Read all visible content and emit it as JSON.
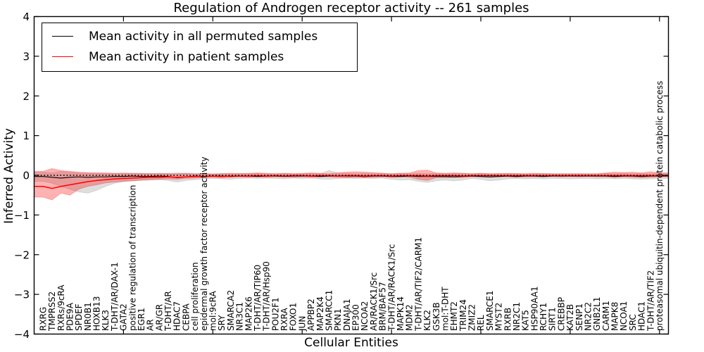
{
  "figure": {
    "title": "Regulation of Androgen receptor activity -- 261 samples"
  },
  "legend": {
    "position": "upper left",
    "items": [
      {
        "label": "Mean activity in all permuted samples",
        "color": "#000000"
      },
      {
        "label": "Mean activity in patient samples",
        "color": "#ff0000"
      }
    ]
  },
  "chart_data": {
    "type": "line",
    "title": "Regulation of Androgen receptor activity -- 261 samples",
    "xlabel": "Cellular Entities",
    "ylabel": "Inferred Activity",
    "ylim": [
      -4,
      4
    ],
    "yticks": [
      4,
      3,
      2,
      1,
      0,
      -1,
      -2,
      -3,
      -4
    ],
    "xtick_mark_interval": 10,
    "grid": false,
    "legend_position": "upper left",
    "zero_line": {
      "style": "dotted",
      "color": "#000000",
      "y": 0
    },
    "categories": [
      "RXRG",
      "TMPRSS2",
      "RXRs/9cRA",
      "PDE9A",
      "SPDEF",
      "NR0B1",
      "HOXB13",
      "KLK3",
      "T-DHT/AR/DAX-1",
      "GATA2",
      "positive regulation of transcription",
      "EGR1",
      "AR",
      "AR/GR",
      "T-DHT/AR",
      "HDAC7",
      "CEBPA",
      "cell proliferation",
      "epidermal growth factor receptor activity",
      "mol:9cRA",
      "SRY",
      "SMARCA2",
      "NR3C1",
      "MAP2K6",
      "T-DHT/AR/TIP60",
      "T-DHT/AR/Hsp90",
      "POU2F1",
      "RXRA",
      "FOXO1",
      "JUN",
      "APPBP2",
      "MAP2K4",
      "SMARCC1",
      "PKN1",
      "DNAJA1",
      "EP300",
      "NCOA2",
      "AR/RACK1/Src",
      "BRM/BAF57",
      "T-DHT/AR/RACK1/Src",
      "MAPK14",
      "MDM2",
      "T-DHT/AR/TIF2/CARM1",
      "KLK2",
      "GSK3B",
      "mol:T-DHT",
      "EHMT2",
      "TRIM24",
      "ZMIZ2",
      "REL",
      "SMARCE1",
      "MYST2",
      "RXRB",
      "NR2C1",
      "KAT5",
      "HSP90AA1",
      "RCHY1",
      "SIRT1",
      "CREBBP",
      "KAT2B",
      "SENP1",
      "NR2C2",
      "GNB2L1",
      "CARM1",
      "MAPK8",
      "NCOA1",
      "SRC",
      "HDAC1",
      "T-DHT/AR/TIF2",
      "proteasomal ubiquitin-dependent protein catabolic process"
    ],
    "series": [
      {
        "name": "Mean activity in all permuted samples",
        "color": "#000000",
        "values": [
          -0.03,
          -0.05,
          -0.07,
          -0.05,
          -0.04,
          -0.05,
          -0.04,
          -0.04,
          -0.03,
          -0.03,
          -0.02,
          -0.03,
          -0.03,
          -0.02,
          -0.03,
          -0.06,
          -0.04,
          -0.02,
          -0.03,
          -0.02,
          -0.02,
          -0.03,
          -0.02,
          -0.02,
          -0.03,
          -0.02,
          -0.02,
          -0.03,
          -0.02,
          -0.02,
          -0.02,
          -0.03,
          -0.02,
          -0.02,
          -0.02,
          -0.02,
          -0.03,
          -0.02,
          -0.02,
          -0.03,
          -0.03,
          -0.02,
          -0.03,
          -0.03,
          -0.03,
          -0.03,
          -0.04,
          -0.03,
          -0.02,
          -0.03,
          -0.04,
          -0.03,
          -0.02,
          -0.03,
          -0.02,
          -0.02,
          -0.03,
          -0.02,
          -0.02,
          -0.02,
          -0.02,
          -0.02,
          -0.02,
          -0.02,
          -0.03,
          -0.02,
          -0.02,
          -0.03,
          -0.02,
          -0.02
        ]
      },
      {
        "name": "Mean activity in patient samples",
        "color": "#ff0000",
        "values": [
          -0.28,
          -0.33,
          -0.28,
          -0.24,
          -0.2,
          -0.16,
          -0.13,
          -0.11,
          -0.09,
          -0.08,
          -0.07,
          -0.06,
          -0.05,
          -0.05,
          -0.04,
          -0.05,
          -0.04,
          -0.03,
          -0.03,
          -0.02,
          -0.03,
          -0.02,
          -0.02,
          -0.02,
          -0.01,
          -0.02,
          -0.01,
          -0.02,
          -0.01,
          -0.01,
          -0.02,
          -0.01,
          -0.01,
          -0.02,
          -0.01,
          -0.01,
          -0.02,
          -0.01,
          -0.01,
          -0.02,
          -0.01,
          -0.01,
          -0.01,
          -0.02,
          -0.01,
          -0.01,
          -0.01,
          -0.02,
          -0.01,
          -0.01,
          -0.01,
          -0.01,
          -0.01,
          -0.01,
          -0.01,
          -0.01,
          -0.01,
          -0.01,
          -0.01,
          -0.01,
          -0.01,
          -0.01,
          -0.01,
          -0.01,
          -0.01,
          -0.01,
          -0.01,
          -0.01,
          -0.01,
          -0.01
        ]
      }
    ],
    "bands": [
      {
        "name": "Permuted samples range",
        "color": "#000000",
        "fill_opacity": 0.13,
        "upper": [
          0.08,
          0.06,
          0.1,
          0.08,
          0.06,
          0.05,
          0.06,
          0.05,
          0.05,
          0.06,
          0.05,
          0.04,
          0.05,
          0.04,
          0.05,
          0.06,
          0.05,
          0.04,
          0.05,
          0.04,
          0.05,
          0.04,
          0.05,
          0.04,
          0.05,
          0.04,
          0.04,
          0.05,
          0.04,
          0.04,
          0.05,
          0.04,
          0.12,
          0.06,
          0.05,
          0.04,
          0.05,
          0.04,
          0.05,
          0.04,
          0.05,
          0.04,
          0.05,
          0.04,
          0.05,
          0.04,
          0.05,
          0.05,
          0.04,
          0.05,
          0.04,
          0.05,
          0.04,
          0.05,
          0.04,
          0.04,
          0.05,
          0.04,
          0.05,
          0.04,
          0.04,
          0.05,
          0.04,
          0.05,
          0.04,
          0.05,
          0.04,
          0.05,
          0.04,
          0.05
        ],
        "lower": [
          -0.15,
          -0.2,
          -0.28,
          -0.35,
          -0.42,
          -0.45,
          -0.38,
          -0.28,
          -0.2,
          -0.16,
          -0.14,
          -0.13,
          -0.12,
          -0.11,
          -0.13,
          -0.17,
          -0.13,
          -0.11,
          -0.09,
          -0.08,
          -0.09,
          -0.1,
          -0.08,
          -0.07,
          -0.08,
          -0.07,
          -0.08,
          -0.09,
          -0.07,
          -0.08,
          -0.07,
          -0.09,
          -0.1,
          -0.08,
          -0.07,
          -0.08,
          -0.07,
          -0.08,
          -0.07,
          -0.1,
          -0.12,
          -0.11,
          -0.15,
          -0.18,
          -0.14,
          -0.12,
          -0.14,
          -0.12,
          -0.08,
          -0.1,
          -0.14,
          -0.12,
          -0.09,
          -0.08,
          -0.09,
          -0.08,
          -0.09,
          -0.08,
          -0.08,
          -0.09,
          -0.08,
          -0.08,
          -0.09,
          -0.08,
          -0.09,
          -0.08,
          -0.09,
          -0.1,
          -0.09,
          -0.08
        ]
      },
      {
        "name": "Patient samples range",
        "color": "#ff0000",
        "fill_opacity": 0.3,
        "upper": [
          0.1,
          0.17,
          0.12,
          0.1,
          0.08,
          0.07,
          0.06,
          0.06,
          0.05,
          0.05,
          0.05,
          0.05,
          0.04,
          0.05,
          0.04,
          0.04,
          0.05,
          0.04,
          0.04,
          0.03,
          0.04,
          0.05,
          0.04,
          0.05,
          0.06,
          0.05,
          0.04,
          0.05,
          0.04,
          0.05,
          0.06,
          0.05,
          0.04,
          0.06,
          0.08,
          0.09,
          0.08,
          0.07,
          0.05,
          0.04,
          0.05,
          0.06,
          0.12,
          0.13,
          0.06,
          0.05,
          0.06,
          0.05,
          0.04,
          0.05,
          0.04,
          0.04,
          0.05,
          0.04,
          0.04,
          0.05,
          0.04,
          0.04,
          0.03,
          0.04,
          0.04,
          0.03,
          0.04,
          0.06,
          0.08,
          0.07,
          0.08,
          0.06,
          0.09,
          0.06
        ],
        "lower": [
          -0.55,
          -0.62,
          -0.45,
          -0.5,
          -0.35,
          -0.28,
          -0.24,
          -0.19,
          -0.17,
          -0.15,
          -0.14,
          -0.12,
          -0.11,
          -0.1,
          -0.09,
          -0.1,
          -0.08,
          -0.07,
          -0.06,
          -0.05,
          -0.06,
          -0.05,
          -0.04,
          -0.05,
          -0.04,
          -0.05,
          -0.04,
          -0.04,
          -0.05,
          -0.04,
          -0.05,
          -0.04,
          -0.04,
          -0.05,
          -0.06,
          -0.05,
          -0.06,
          -0.05,
          -0.04,
          -0.05,
          -0.04,
          -0.05,
          -0.1,
          -0.13,
          -0.06,
          -0.06,
          -0.05,
          -0.05,
          -0.04,
          -0.04,
          -0.05,
          -0.04,
          -0.04,
          -0.05,
          -0.04,
          -0.04,
          -0.04,
          -0.03,
          -0.04,
          -0.03,
          -0.04,
          -0.03,
          -0.04,
          -0.04,
          -0.05,
          -0.04,
          -0.05,
          -0.06,
          -0.05,
          -0.04
        ]
      }
    ]
  }
}
